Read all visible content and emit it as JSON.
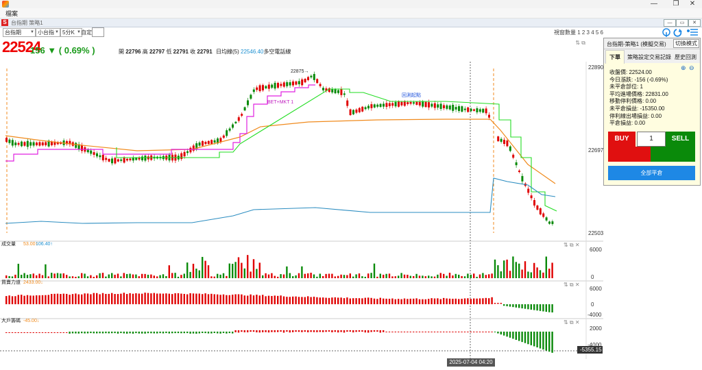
{
  "window": {
    "close_glyph": "✕",
    "minimize_glyph": "—",
    "restore_glyph": "❐"
  },
  "menu": {
    "file": "檔案"
  },
  "subwindow": {
    "title": "台指期 策略1",
    "btn_min": "—",
    "btn_max": "▭",
    "btn_close": "✕"
  },
  "toolbar": {
    "symbol": "台指期",
    "contract": "小台指",
    "period": "5分K",
    "custom_label": "自定",
    "view_count_label": "視窗數量 1 2 3 4 5 6"
  },
  "quote": {
    "price": "22524",
    "change": "156 ▼ ( 0.69% )",
    "open_label": "開",
    "open": "22796",
    "high_label": "高",
    "high": "22797",
    "low_label": "低",
    "low": "22791",
    "close_label": "收",
    "close": "22791",
    "ma_label": "日均線(5)",
    "ma_value": "22546.40",
    "ma_tail": "多空電話線"
  },
  "chart_data": {
    "type": "candlestick",
    "date_marker": "2025-07-04  04:20",
    "main": {
      "y_ticks": [
        "22890",
        "22697",
        "22503"
      ],
      "ylim": [
        22503,
        22890
      ],
      "annotations": [
        "22875→",
        "BET+MKT 1",
        "回測起點"
      ]
    },
    "volume": {
      "label": "成交量",
      "v1": "53.00↑",
      "v2": "106.40↑",
      "ticks": [
        "6000",
        "0"
      ]
    },
    "pressure": {
      "label": "買賣力道",
      "v1": "2433.00↓",
      "ticks": [
        "6000",
        "0",
        "-4000"
      ]
    },
    "bigplayer": {
      "label": "大戶籌碼",
      "v1": "-45.00↓",
      "ticks": [
        "2000",
        "-4000"
      ],
      "last": "-5355.15"
    }
  },
  "order_panel": {
    "title": "台指期-策略1 (模擬交易)",
    "mode_button": "切換模式",
    "tabs": [
      "下單",
      "策略設定",
      "交易記錄",
      "歷史回測"
    ],
    "zoom_in": "🔍+",
    "zoom_out": "🔍-",
    "info": [
      "收盤價: 22524.00",
      "今日漲跌: -156 (-0.69%)",
      "未平倉部位: 1",
      "平均進場價格: 22831.00",
      "移動停利價格: 0.00",
      "未平倉損益: -15350.00",
      "停利線出場損益: 0.00",
      "平倉損益: 0.00"
    ],
    "buy": "BUY",
    "qty": "1",
    "sell": "SELL",
    "close_all": "全部平倉"
  },
  "colors": {
    "up": "#e00000",
    "down": "#0a8a0a",
    "magenta": "#e020e0",
    "orange": "#f08a1c",
    "green_line": "#22dd22",
    "blue_line": "#2a8cc0"
  }
}
